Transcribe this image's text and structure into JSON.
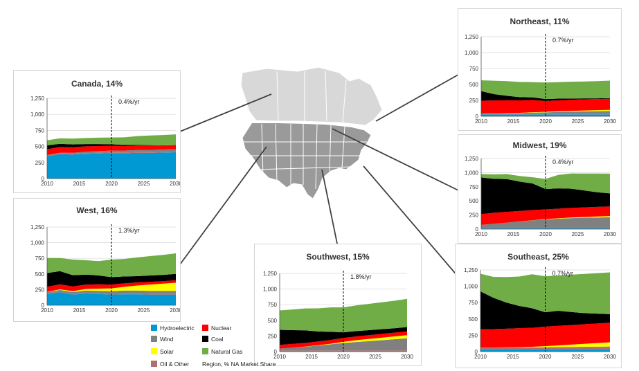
{
  "legend": {
    "items": [
      {
        "name": "Hydroelectric",
        "color": "#0099d4"
      },
      {
        "name": "Nuclear",
        "color": "#ff0000"
      },
      {
        "name": "Wind",
        "color": "#808080"
      },
      {
        "name": "Coal",
        "color": "#000000"
      },
      {
        "name": "Solar",
        "color": "#ffff00"
      },
      {
        "name": "Natural Gas",
        "color": "#70ad47"
      },
      {
        "name": "Oil & Other",
        "color": "#b07070"
      }
    ],
    "note": "Region, % NA Market Share"
  },
  "chart_data": [
    {
      "type": "area",
      "title": "Canada, 14%",
      "annotation": "0.4%/yr",
      "x": [
        2010,
        2012,
        2014,
        2016,
        2018,
        2020,
        2022,
        2024,
        2026,
        2028,
        2030
      ],
      "x_ticks": [
        "2010",
        "2015",
        "2020",
        "2025",
        "2030"
      ],
      "y_ticks": [
        "0",
        "250",
        "500",
        "750",
        "1,000",
        "1,250"
      ],
      "ylim": [
        0,
        1250
      ],
      "xlim": [
        2010,
        2030
      ],
      "divider_x": 2020,
      "series": [
        {
          "name": "Hydroelectric",
          "values": [
            350,
            380,
            375,
            385,
            390,
            395,
            395,
            400,
            400,
            405,
            410
          ]
        },
        {
          "name": "Oil & Other",
          "values": [
            12,
            12,
            12,
            12,
            12,
            12,
            12,
            12,
            12,
            12,
            12
          ]
        },
        {
          "name": "Wind",
          "values": [
            5,
            10,
            15,
            20,
            25,
            28,
            30,
            32,
            34,
            35,
            36
          ]
        },
        {
          "name": "Nuclear",
          "values": [
            90,
            90,
            85,
            85,
            80,
            75,
            70,
            70,
            70,
            65,
            65
          ]
        },
        {
          "name": "Coal",
          "values": [
            60,
            50,
            45,
            35,
            30,
            25,
            15,
            8,
            5,
            0,
            0
          ]
        },
        {
          "name": "Natural Gas",
          "values": [
            80,
            85,
            90,
            95,
            100,
            105,
            120,
            140,
            150,
            160,
            165
          ]
        }
      ]
    },
    {
      "type": "area",
      "title": "West, 16%",
      "annotation": "1.3%/yr",
      "x": [
        2010,
        2012,
        2014,
        2016,
        2018,
        2020,
        2022,
        2024,
        2026,
        2028,
        2030
      ],
      "x_ticks": [
        "2010",
        "2015",
        "2020",
        "2025",
        "2030"
      ],
      "y_ticks": [
        "0",
        "250",
        "500",
        "750",
        "1,000",
        "1,250"
      ],
      "ylim": [
        0,
        1250
      ],
      "xlim": [
        2010,
        2030
      ],
      "divider_x": 2020,
      "series": [
        {
          "name": "Hydroelectric",
          "values": [
            180,
            210,
            170,
            190,
            180,
            170,
            175,
            175,
            170,
            170,
            170
          ]
        },
        {
          "name": "Oil & Other",
          "values": [
            10,
            10,
            10,
            10,
            10,
            10,
            10,
            10,
            10,
            10,
            10
          ]
        },
        {
          "name": "Wind",
          "values": [
            20,
            25,
            30,
            35,
            40,
            45,
            50,
            50,
            50,
            50,
            50
          ]
        },
        {
          "name": "Solar",
          "values": [
            5,
            10,
            15,
            25,
            35,
            45,
            60,
            80,
            100,
            115,
            130
          ]
        },
        {
          "name": "Nuclear",
          "values": [
            80,
            80,
            75,
            70,
            70,
            60,
            55,
            50,
            45,
            40,
            40
          ]
        },
        {
          "name": "Coal",
          "values": [
            220,
            210,
            180,
            160,
            140,
            120,
            110,
            100,
            100,
            100,
            100
          ]
        },
        {
          "name": "Natural Gas",
          "values": [
            240,
            210,
            250,
            230,
            230,
            280,
            280,
            300,
            310,
            320,
            330
          ]
        }
      ]
    },
    {
      "type": "area",
      "title": "Southwest, 15%",
      "annotation": "1.8%/yr",
      "x": [
        2010,
        2012,
        2014,
        2016,
        2018,
        2020,
        2022,
        2024,
        2026,
        2028,
        2030
      ],
      "x_ticks": [
        "2010",
        "2015",
        "2020",
        "2025",
        "2030"
      ],
      "y_ticks": [
        "0",
        "250",
        "500",
        "750",
        "1,000",
        "1,250"
      ],
      "ylim": [
        0,
        1250
      ],
      "xlim": [
        2010,
        2030
      ],
      "divider_x": 2020,
      "series": [
        {
          "name": "Hydroelectric",
          "values": [
            3,
            3,
            3,
            3,
            3,
            3,
            3,
            3,
            3,
            3,
            3
          ]
        },
        {
          "name": "Oil & Other",
          "values": [
            15,
            15,
            15,
            15,
            15,
            15,
            15,
            15,
            15,
            15,
            15
          ]
        },
        {
          "name": "Wind",
          "values": [
            30,
            45,
            60,
            80,
            100,
            120,
            135,
            150,
            165,
            180,
            195
          ]
        },
        {
          "name": "Solar",
          "values": [
            0,
            0,
            2,
            4,
            8,
            20,
            30,
            35,
            40,
            45,
            50
          ]
        },
        {
          "name": "Nuclear",
          "values": [
            60,
            60,
            60,
            60,
            60,
            60,
            60,
            60,
            60,
            60,
            60
          ]
        },
        {
          "name": "Coal",
          "values": [
            240,
            220,
            200,
            160,
            130,
            90,
            85,
            80,
            75,
            70,
            70
          ]
        },
        {
          "name": "Natural Gas",
          "values": [
            310,
            330,
            350,
            370,
            390,
            400,
            410,
            420,
            430,
            440,
            450
          ]
        }
      ]
    },
    {
      "type": "area",
      "title": "Northeast, 11%",
      "annotation": "0.7%/yr",
      "x": [
        2010,
        2012,
        2014,
        2016,
        2018,
        2020,
        2022,
        2024,
        2026,
        2028,
        2030
      ],
      "x_ticks": [
        "2010",
        "2015",
        "2020",
        "2025",
        "2030"
      ],
      "y_ticks": [
        "0",
        "250",
        "500",
        "750",
        "1,000",
        "1,250"
      ],
      "ylim": [
        0,
        1250
      ],
      "xlim": [
        2010,
        2030
      ],
      "divider_x": 2020,
      "series": [
        {
          "name": "Hydroelectric",
          "values": [
            30,
            30,
            30,
            30,
            30,
            30,
            30,
            30,
            30,
            30,
            30
          ]
        },
        {
          "name": "Oil & Other",
          "values": [
            12,
            12,
            12,
            12,
            12,
            12,
            12,
            12,
            12,
            12,
            12
          ]
        },
        {
          "name": "Wind",
          "values": [
            3,
            5,
            8,
            10,
            15,
            20,
            25,
            30,
            35,
            38,
            40
          ]
        },
        {
          "name": "Solar",
          "values": [
            0,
            1,
            2,
            3,
            5,
            8,
            10,
            12,
            14,
            16,
            18
          ]
        },
        {
          "name": "Nuclear",
          "values": [
            200,
            200,
            200,
            195,
            195,
            170,
            175,
            175,
            175,
            175,
            175
          ]
        },
        {
          "name": "Coal",
          "values": [
            150,
            100,
            70,
            50,
            40,
            30,
            25,
            20,
            15,
            10,
            10
          ]
        },
        {
          "name": "Natural Gas",
          "values": [
            170,
            210,
            230,
            240,
            240,
            260,
            260,
            265,
            265,
            270,
            275
          ]
        }
      ]
    },
    {
      "type": "area",
      "title": "Midwest, 19%",
      "annotation": "0.4%/yr",
      "x": [
        2010,
        2012,
        2014,
        2016,
        2018,
        2020,
        2022,
        2024,
        2026,
        2028,
        2030
      ],
      "x_ticks": [
        "2010",
        "2015",
        "2020",
        "2025",
        "2030"
      ],
      "y_ticks": [
        "0",
        "250",
        "500",
        "750",
        "1,000",
        "1,250"
      ],
      "ylim": [
        0,
        1250
      ],
      "xlim": [
        2010,
        2030
      ],
      "divider_x": 2020,
      "series": [
        {
          "name": "Hydroelectric",
          "values": [
            15,
            15,
            15,
            15,
            15,
            15,
            15,
            15,
            15,
            15,
            15
          ]
        },
        {
          "name": "Oil & Other",
          "values": [
            10,
            10,
            10,
            10,
            10,
            10,
            10,
            10,
            10,
            10,
            10
          ]
        },
        {
          "name": "Wind",
          "values": [
            50,
            70,
            90,
            110,
            130,
            150,
            160,
            170,
            175,
            180,
            185
          ]
        },
        {
          "name": "Solar",
          "values": [
            0,
            0,
            0,
            1,
            2,
            4,
            6,
            10,
            14,
            18,
            22
          ]
        },
        {
          "name": "Nuclear",
          "values": [
            190,
            195,
            190,
            185,
            180,
            170,
            170,
            170,
            170,
            170,
            170
          ]
        },
        {
          "name": "Coal",
          "values": [
            650,
            600,
            580,
            520,
            470,
            360,
            360,
            340,
            300,
            260,
            230
          ]
        },
        {
          "name": "Natural Gas",
          "values": [
            60,
            80,
            90,
            100,
            110,
            180,
            240,
            270,
            300,
            330,
            350
          ]
        }
      ]
    },
    {
      "type": "area",
      "title": "Southeast, 25%",
      "annotation": "0.7%/yr",
      "x": [
        2010,
        2012,
        2014,
        2016,
        2018,
        2020,
        2022,
        2024,
        2026,
        2028,
        2030
      ],
      "x_ticks": [
        "2010",
        "2015",
        "2020",
        "2025",
        "2030"
      ],
      "y_ticks": [
        "0",
        "250",
        "500",
        "750",
        "1,000",
        "1,250"
      ],
      "ylim": [
        0,
        1250
      ],
      "xlim": [
        2010,
        2030
      ],
      "divider_x": 2020,
      "series": [
        {
          "name": "Hydroelectric",
          "values": [
            40,
            40,
            40,
            40,
            40,
            40,
            40,
            40,
            40,
            40,
            40
          ]
        },
        {
          "name": "Oil & Other",
          "values": [
            20,
            20,
            20,
            20,
            20,
            20,
            20,
            20,
            20,
            20,
            20
          ]
        },
        {
          "name": "Wind",
          "values": [
            2,
            3,
            4,
            5,
            6,
            8,
            10,
            12,
            14,
            16,
            18
          ]
        },
        {
          "name": "Solar",
          "values": [
            0,
            1,
            2,
            4,
            8,
            15,
            25,
            35,
            45,
            55,
            65
          ]
        },
        {
          "name": "Nuclear",
          "values": [
            280,
            280,
            285,
            290,
            290,
            300,
            300,
            300,
            300,
            300,
            300
          ]
        },
        {
          "name": "Coal",
          "values": [
            580,
            480,
            400,
            340,
            300,
            220,
            230,
            200,
            170,
            150,
            130
          ]
        },
        {
          "name": "Natural Gas",
          "values": [
            270,
            320,
            390,
            450,
            520,
            550,
            540,
            570,
            600,
            620,
            640
          ]
        }
      ]
    }
  ]
}
